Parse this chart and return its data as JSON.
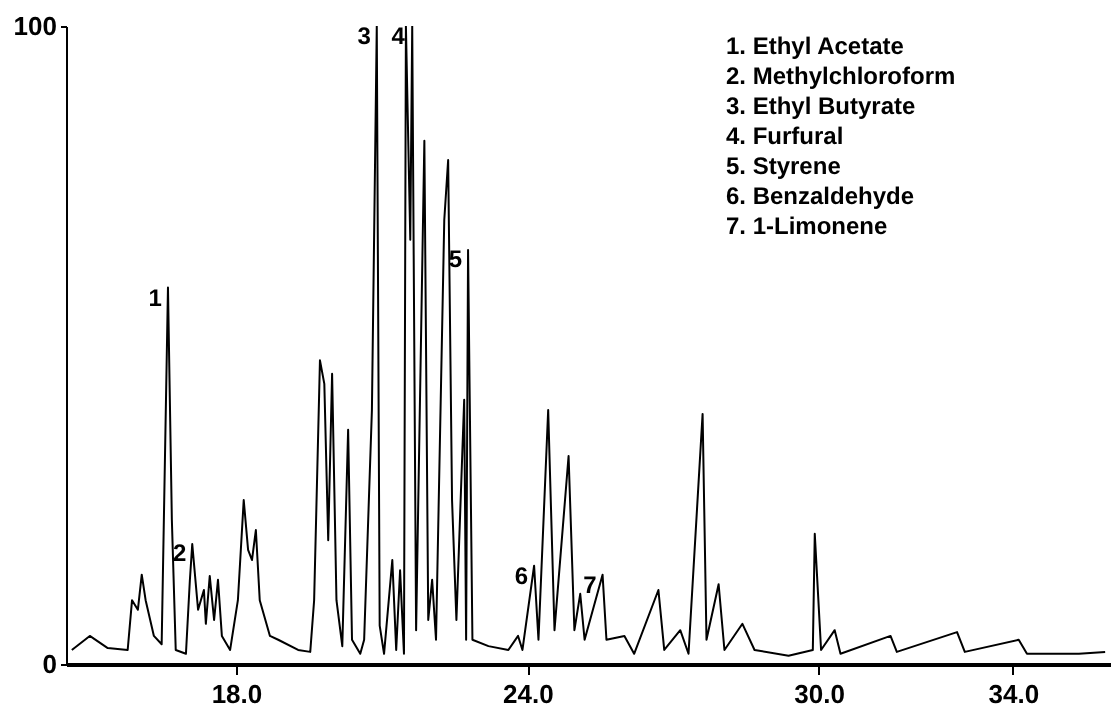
{
  "chart_data": {
    "type": "line",
    "xlim": [
      14.5,
      36.0
    ],
    "ylim": [
      0,
      100
    ],
    "xticks": [
      {
        "value": 18,
        "label": "18.0"
      },
      {
        "value": 24,
        "label": "24.0"
      },
      {
        "value": 30,
        "label": "30.0"
      },
      {
        "value": 34,
        "label": "34.0"
      }
    ],
    "yticks": [
      0,
      100
    ],
    "grid": false,
    "marker": "none",
    "line_style": "solid",
    "x": [
      14.62,
      14.99,
      15.36,
      15.77,
      15.86,
      15.98,
      16.06,
      16.14,
      16.31,
      16.47,
      16.6,
      16.68,
      16.76,
      16.97,
      17.05,
      17.1,
      17.22,
      17.34,
      17.38,
      17.46,
      17.55,
      17.63,
      17.71,
      17.88,
      18.04,
      18.16,
      18.25,
      18.33,
      18.41,
      18.49,
      18.7,
      18.87,
      19.28,
      19.53,
      19.61,
      19.73,
      19.82,
      19.9,
      19.98,
      20.07,
      20.19,
      20.31,
      20.39,
      20.56,
      20.64,
      20.8,
      20.9,
      20.96,
      21.05,
      21.22,
      21.3,
      21.38,
      21.46,
      21.5,
      21.59,
      21.63,
      21.71,
      21.88,
      21.96,
      22.04,
      22.12,
      22.29,
      22.37,
      22.45,
      22.54,
      22.7,
      22.74,
      22.78,
      22.87,
      23.2,
      23.61,
      23.81,
      23.9,
      24.14,
      24.23,
      24.43,
      24.56,
      24.85,
      24.97,
      25.09,
      25.18,
      25.55,
      25.63,
      26.0,
      26.2,
      26.7,
      26.82,
      27.15,
      27.32,
      27.61,
      27.69,
      27.94,
      28.06,
      28.43,
      28.68,
      29.38,
      29.88,
      29.92,
      30.05,
      30.33,
      30.45,
      31.48,
      31.61,
      32.85,
      33.01,
      34.12,
      34.29,
      35.36,
      35.9
    ],
    "series": [
      {
        "color": "#000000",
        "values": [
          2.2,
          4.4,
          2.5,
          2.2,
          10,
          8.5,
          14,
          10,
          4.4,
          3.1,
          59,
          22.6,
          2.2,
          1.6,
          13,
          18.8,
          8.5,
          11.6,
          6.3,
          13.8,
          6.9,
          13.2,
          4.4,
          2.2,
          10,
          25.7,
          17.9,
          16.3,
          21,
          10,
          4.4,
          3.8,
          2.2,
          1.9,
          10,
          47.6,
          43.9,
          19.4,
          45.5,
          10,
          2.8,
          36.7,
          3.8,
          1.6,
          3.8,
          39.8,
          100,
          6,
          1.6,
          16.3,
          2.2,
          14.7,
          1.6,
          100,
          66.5,
          100,
          5.3,
          82,
          6.9,
          13.2,
          3.8,
          69.6,
          79,
          25.7,
          6.9,
          41.4,
          3.8,
          64.9,
          3.8,
          2.8,
          2.2,
          4.4,
          2.2,
          15.4,
          3.8,
          39.8,
          5.3,
          32.6,
          5.3,
          11,
          3.8,
          14,
          3.8,
          4.4,
          1.6,
          11.6,
          2.2,
          5.3,
          1.6,
          39.2,
          3.8,
          12.5,
          2.2,
          6.3,
          2.2,
          1.3,
          2.2,
          20.4,
          2.2,
          5.3,
          1.6,
          4.4,
          1.9,
          5,
          1.9,
          3.8,
          1.6,
          1.6,
          1.9
        ]
      }
    ],
    "annotations": [
      {
        "text": "1",
        "x": 16.6,
        "y": 59
      },
      {
        "text": "2",
        "x": 17.1,
        "y": 19
      },
      {
        "text": "3",
        "x": 20.9,
        "y": 100
      },
      {
        "text": "4",
        "x": 21.6,
        "y": 100
      },
      {
        "text": "5",
        "x": 22.78,
        "y": 65
      },
      {
        "text": "6",
        "x": 24.14,
        "y": 15.4
      },
      {
        "text": "7",
        "x": 25.55,
        "y": 14
      },
      "1. Ethyl Acetate",
      "2. Methylchloroform",
      "3. Ethyl Butyrate",
      "4. Furfural",
      "5. Styrene",
      "6. Benzaldehyde",
      "7. 1-Limonene"
    ]
  }
}
